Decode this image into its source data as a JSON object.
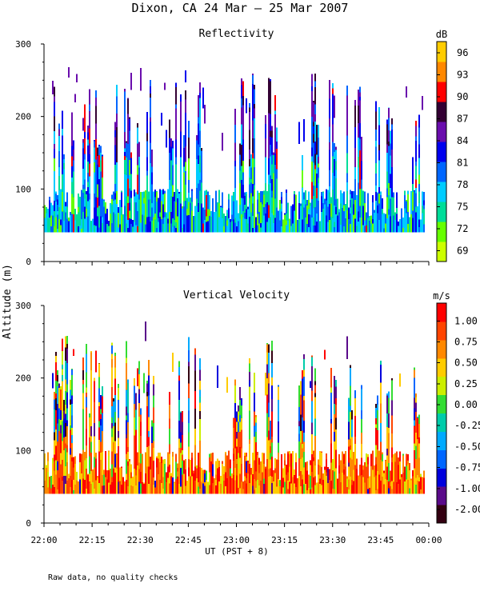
{
  "page_title": "Dixon, CA 24 Mar — 25 Mar 2007",
  "shared_ylabel": "Altitude (m)",
  "shared_xlabel": "UT   (PST + 8)",
  "footer_note": "Raw data, no quality checks",
  "chart_data": [
    {
      "type": "heatmap",
      "title": "Reflectivity",
      "ylabel": "Altitude (m)",
      "xlabel": "UT   (PST + 8)",
      "xlim": [
        0,
        120
      ],
      "x_unit": "minutes after 22:00 UT",
      "x_ticks": [
        "22:00",
        "22:15",
        "22:30",
        "22:45",
        "23:00",
        "23:15",
        "23:30",
        "23:45",
        "00:00"
      ],
      "ylim": [
        0,
        300
      ],
      "y_ticks": [
        "0",
        "100",
        "200",
        "300"
      ],
      "colorbar": {
        "unit": "dB",
        "range": [
          67.5,
          97.5
        ],
        "ticks": [
          "69",
          "72",
          "75",
          "78",
          "81",
          "84",
          "87",
          "90",
          "93",
          "96"
        ],
        "colors": [
          "#ccff00",
          "#66ff00",
          "#00dd99",
          "#00ccff",
          "#0066ff",
          "#0000ee",
          "#6a0dad",
          "#330033",
          "#ff0000",
          "#ff8800",
          "#ffcc00"
        ]
      },
      "data_coverage": {
        "min_altitude": 40,
        "dense_top_altitude": 100,
        "max_altitude": 280
      }
    },
    {
      "type": "heatmap",
      "title": "Vertical Velocity",
      "ylabel": "Altitude (m)",
      "xlabel": "UT   (PST + 8)",
      "xlim": [
        0,
        120
      ],
      "x_unit": "minutes after 22:00 UT",
      "x_ticks": [
        "22:00",
        "22:15",
        "22:30",
        "22:45",
        "23:00",
        "23:15",
        "23:30",
        "23:45",
        "00:00"
      ],
      "ylim": [
        0,
        300
      ],
      "y_ticks": [
        "0",
        "100",
        "200",
        "300"
      ],
      "colorbar": {
        "unit": "m/s",
        "range": [
          -2.0,
          1.0
        ],
        "ticks": [
          "1.00",
          "0.75",
          "0.50",
          "0.25",
          "0.00",
          "-0.25",
          "-0.50",
          "-0.75",
          "-1.00",
          "-2.00"
        ],
        "colors": [
          "#330011",
          "#5a0a8a",
          "#0000dd",
          "#0066ff",
          "#00aaff",
          "#00ccaa",
          "#33dd33",
          "#ccee00",
          "#ffcc00",
          "#ff8800",
          "#ff4400",
          "#ff0000"
        ]
      },
      "data_coverage": {
        "min_altitude": 40,
        "dense_top_altitude": 100,
        "max_altitude": 280
      }
    }
  ]
}
